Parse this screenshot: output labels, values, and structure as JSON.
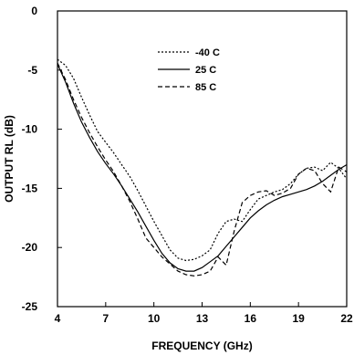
{
  "chart_data": {
    "type": "line",
    "title": "",
    "xlabel": "FREQUENCY (GHz)",
    "ylabel": "OUTPUT RL (dB)",
    "xlim": [
      4,
      22
    ],
    "ylim": [
      -25,
      0
    ],
    "x_ticks": [
      4,
      7,
      10,
      13,
      16,
      19,
      22
    ],
    "y_ticks": [
      0,
      -5,
      -10,
      -15,
      -20,
      -25
    ],
    "grid": false,
    "legend_position": "top-center",
    "series": [
      {
        "name": "-40 C",
        "dash": "dotted",
        "points": [
          [
            4,
            -4.1
          ],
          [
            4.5,
            -4.6
          ],
          [
            5,
            -5.7
          ],
          [
            5.5,
            -7.3
          ],
          [
            6,
            -8.8
          ],
          [
            6.5,
            -10.2
          ],
          [
            7,
            -11.1
          ],
          [
            7.5,
            -12.0
          ],
          [
            8,
            -13.0
          ],
          [
            8.5,
            -14.0
          ],
          [
            9,
            -15.2
          ],
          [
            9.5,
            -16.5
          ],
          [
            10,
            -17.8
          ],
          [
            10.5,
            -19.0
          ],
          [
            11,
            -20.2
          ],
          [
            11.5,
            -20.9
          ],
          [
            12,
            -21.1
          ],
          [
            12.5,
            -21.0
          ],
          [
            13,
            -20.7
          ],
          [
            13.5,
            -20.2
          ],
          [
            14,
            -18.8
          ],
          [
            14.5,
            -17.8
          ],
          [
            15,
            -17.6
          ],
          [
            15.5,
            -17.8
          ],
          [
            16,
            -16.8
          ],
          [
            16.5,
            -15.9
          ],
          [
            17,
            -15.6
          ],
          [
            17.5,
            -15.3
          ],
          [
            18,
            -15.1
          ],
          [
            18.5,
            -14.6
          ],
          [
            19,
            -13.8
          ],
          [
            19.5,
            -13.3
          ],
          [
            20,
            -13.2
          ],
          [
            20.5,
            -13.5
          ],
          [
            21,
            -12.8
          ],
          [
            21.5,
            -13.3
          ],
          [
            22,
            -14.2
          ]
        ]
      },
      {
        "name": "25 C",
        "dash": "solid",
        "points": [
          [
            4,
            -4.5
          ],
          [
            4.5,
            -6.0
          ],
          [
            5,
            -7.8
          ],
          [
            5.5,
            -9.4
          ],
          [
            6,
            -10.7
          ],
          [
            6.5,
            -11.9
          ],
          [
            7,
            -12.9
          ],
          [
            7.5,
            -13.8
          ],
          [
            8,
            -14.8
          ],
          [
            8.5,
            -15.9
          ],
          [
            9,
            -17.0
          ],
          [
            9.5,
            -18.2
          ],
          [
            10,
            -19.4
          ],
          [
            10.5,
            -20.5
          ],
          [
            11,
            -21.3
          ],
          [
            11.5,
            -21.8
          ],
          [
            12,
            -22.0
          ],
          [
            12.5,
            -22.0
          ],
          [
            13,
            -21.7
          ],
          [
            13.5,
            -21.2
          ],
          [
            14,
            -20.7
          ],
          [
            14.5,
            -19.9
          ],
          [
            15,
            -19.1
          ],
          [
            15.5,
            -18.3
          ],
          [
            16,
            -17.5
          ],
          [
            16.5,
            -16.9
          ],
          [
            17,
            -16.4
          ],
          [
            17.5,
            -16.0
          ],
          [
            18,
            -15.7
          ],
          [
            18.5,
            -15.5
          ],
          [
            19,
            -15.3
          ],
          [
            19.5,
            -15.1
          ],
          [
            20,
            -14.8
          ],
          [
            20.5,
            -14.4
          ],
          [
            21,
            -13.9
          ],
          [
            21.5,
            -13.4
          ],
          [
            22,
            -13.0
          ]
        ]
      },
      {
        "name": "85 C",
        "dash": "dashed",
        "points": [
          [
            4,
            -4.4
          ],
          [
            4.5,
            -5.8
          ],
          [
            5,
            -7.5
          ],
          [
            5.5,
            -9.0
          ],
          [
            6,
            -10.3
          ],
          [
            6.5,
            -11.5
          ],
          [
            7,
            -12.6
          ],
          [
            7.5,
            -13.6
          ],
          [
            8,
            -14.8
          ],
          [
            8.5,
            -16.1
          ],
          [
            9,
            -17.6
          ],
          [
            9.5,
            -19.2
          ],
          [
            10,
            -20.0
          ],
          [
            10.5,
            -20.8
          ],
          [
            11,
            -21.4
          ],
          [
            11.5,
            -22.0
          ],
          [
            12,
            -22.3
          ],
          [
            12.5,
            -22.4
          ],
          [
            13,
            -22.3
          ],
          [
            13.5,
            -22.0
          ],
          [
            14,
            -20.8
          ],
          [
            14.5,
            -21.5
          ],
          [
            15,
            -18.6
          ],
          [
            15.5,
            -16.2
          ],
          [
            16,
            -15.6
          ],
          [
            16.5,
            -15.3
          ],
          [
            17,
            -15.2
          ],
          [
            17.5,
            -15.6
          ],
          [
            18,
            -15.4
          ],
          [
            18.5,
            -15.0
          ],
          [
            19,
            -13.8
          ],
          [
            19.5,
            -13.3
          ],
          [
            20,
            -13.5
          ],
          [
            20.5,
            -14.6
          ],
          [
            21,
            -15.3
          ],
          [
            21.5,
            -13.2
          ],
          [
            22,
            -13.6
          ]
        ]
      }
    ]
  }
}
